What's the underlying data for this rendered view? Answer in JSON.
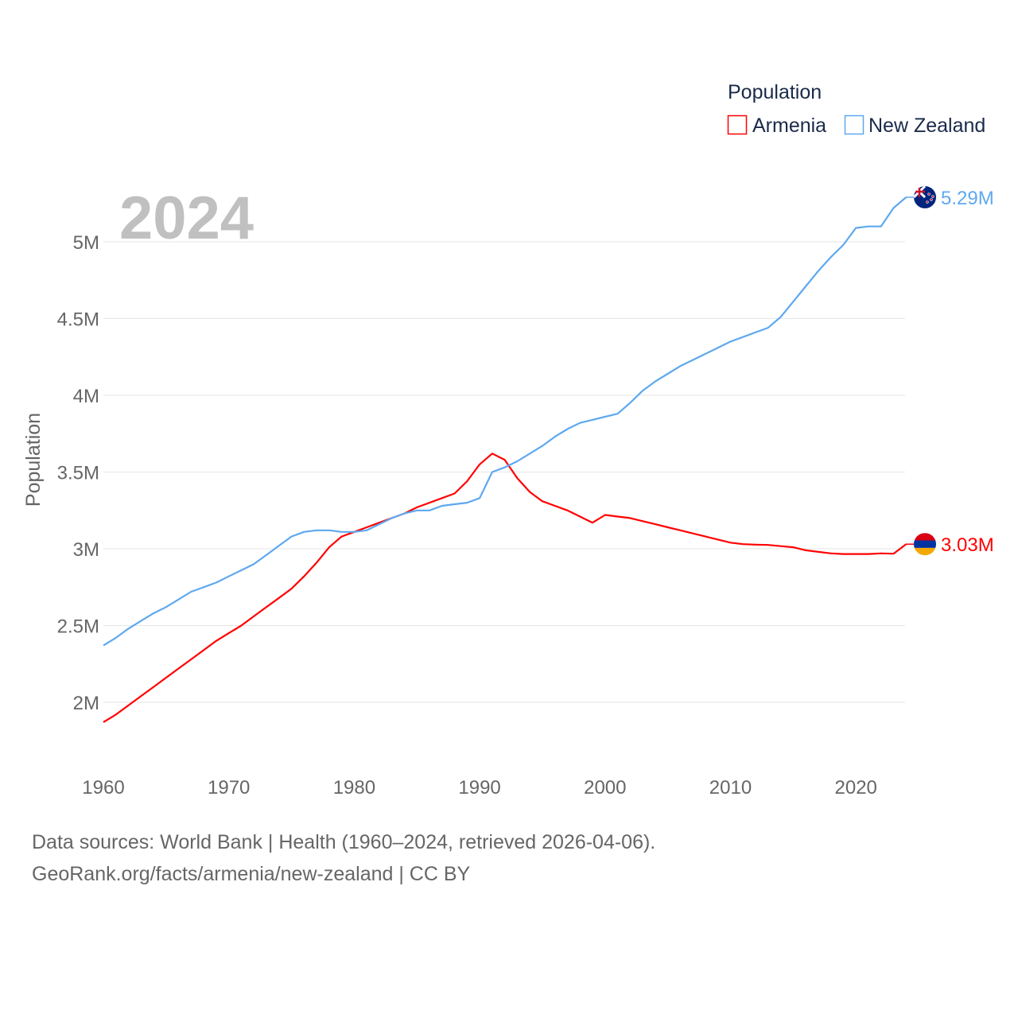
{
  "chart_data": {
    "type": "line",
    "year_label": "2024",
    "ylabel": "Population",
    "legend_title": "Population",
    "legend_position": "top-right",
    "ylim": [
      1.8,
      5.4
    ],
    "xlim": [
      1960,
      2024
    ],
    "y_ticks": [
      {
        "v": 2,
        "label": "2M"
      },
      {
        "v": 2.5,
        "label": "2.5M"
      },
      {
        "v": 3,
        "label": "3M"
      },
      {
        "v": 3.5,
        "label": "3.5M"
      },
      {
        "v": 4,
        "label": "4M"
      },
      {
        "v": 4.5,
        "label": "4.5M"
      },
      {
        "v": 5,
        "label": "5M"
      }
    ],
    "x_ticks": [
      1960,
      1970,
      1980,
      1990,
      2000,
      2010,
      2020
    ],
    "x_tick_labels": [
      "1960",
      "1970",
      "1980",
      "1990",
      "2000",
      "2010",
      "2020"
    ],
    "x_start": 1960,
    "series": [
      {
        "name": "Armenia",
        "color": "#ff0000",
        "end_label": "3.03M",
        "values": [
          1.87,
          1.92,
          1.98,
          2.04,
          2.1,
          2.16,
          2.22,
          2.28,
          2.34,
          2.4,
          2.45,
          2.5,
          2.56,
          2.62,
          2.68,
          2.74,
          2.82,
          2.91,
          3.01,
          3.08,
          3.11,
          3.14,
          3.17,
          3.2,
          3.23,
          3.27,
          3.3,
          3.33,
          3.36,
          3.44,
          3.55,
          3.62,
          3.58,
          3.46,
          3.37,
          3.31,
          3.28,
          3.25,
          3.21,
          3.17,
          3.22,
          3.21,
          3.2,
          3.18,
          3.16,
          3.14,
          3.12,
          3.1,
          3.08,
          3.06,
          3.04,
          3.03,
          3.027,
          3.025,
          3.017,
          3.01,
          2.99,
          2.98,
          2.97,
          2.966,
          2.966,
          2.966,
          2.97,
          2.968,
          3.03
        ]
      },
      {
        "name": "New Zealand",
        "color": "#5ea8ef",
        "end_label": "5.29M",
        "values": [
          2.37,
          2.42,
          2.48,
          2.53,
          2.58,
          2.62,
          2.67,
          2.72,
          2.75,
          2.78,
          2.82,
          2.86,
          2.9,
          2.96,
          3.02,
          3.08,
          3.11,
          3.12,
          3.12,
          3.11,
          3.11,
          3.12,
          3.16,
          3.2,
          3.23,
          3.25,
          3.25,
          3.28,
          3.29,
          3.3,
          3.33,
          3.5,
          3.53,
          3.57,
          3.62,
          3.67,
          3.73,
          3.78,
          3.82,
          3.84,
          3.86,
          3.88,
          3.95,
          4.03,
          4.09,
          4.14,
          4.19,
          4.23,
          4.27,
          4.31,
          4.35,
          4.38,
          4.41,
          4.44,
          4.51,
          4.61,
          4.71,
          4.81,
          4.9,
          4.98,
          5.09,
          5.1,
          5.1,
          5.22,
          5.29
        ]
      }
    ]
  },
  "footer": {
    "sources": "Data sources: World Bank | Health (1960–2024, retrieved 2026-04-06).",
    "credit": "GeoRank.org/facts/armenia/new-zealand | CC BY"
  }
}
